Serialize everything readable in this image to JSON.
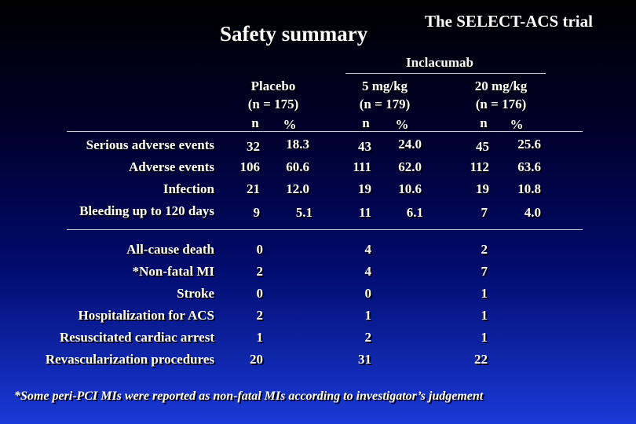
{
  "title": "Safety summary",
  "subtitle": "The SELECT-ACS trial",
  "group_header": "Inclacumab",
  "columns": [
    {
      "name": "Placebo",
      "n_total": "(n = 175)",
      "n_label": "n",
      "pct_label": "%"
    },
    {
      "name": "5 mg/kg",
      "n_total": "(n = 179)",
      "n_label": "n",
      "pct_label": "%"
    },
    {
      "name": "20 mg/kg",
      "n_total": "(n = 176)",
      "n_label": "n",
      "pct_label": "%"
    }
  ],
  "section1": [
    {
      "label": "Serious adverse events",
      "values": [
        [
          "32",
          "18.3"
        ],
        [
          "43",
          "24.0"
        ],
        [
          "45",
          "25.6"
        ]
      ]
    },
    {
      "label": "Adverse events",
      "values": [
        [
          "106",
          "60.6"
        ],
        [
          "111",
          "62.0"
        ],
        [
          "112",
          "63.6"
        ]
      ]
    },
    {
      "label": "Infection",
      "values": [
        [
          "21",
          "12.0"
        ],
        [
          "19",
          "10.6"
        ],
        [
          "19",
          "10.8"
        ]
      ]
    },
    {
      "label": "Bleeding up to 120 days",
      "values": [
        [
          "9",
          "5.1"
        ],
        [
          "11",
          "6.1"
        ],
        [
          "7",
          "4.0"
        ]
      ]
    }
  ],
  "section2": [
    {
      "label": "All-cause death",
      "values": [
        "0",
        "4",
        "2"
      ]
    },
    {
      "label": "*Non-fatal MI",
      "values": [
        "2",
        "4",
        "7"
      ]
    },
    {
      "label": "Stroke",
      "values": [
        "0",
        "0",
        "1"
      ]
    },
    {
      "label": "Hospitalization for ACS",
      "values": [
        "2",
        "1",
        "1"
      ]
    },
    {
      "label": "Resuscitated cardiac arrest",
      "values": [
        "1",
        "2",
        "1"
      ]
    },
    {
      "label": "Revascularization procedures",
      "values": [
        "20",
        "31",
        "22"
      ]
    }
  ],
  "footnote": "*Some peri-PCI MIs were reported as non-fatal MIs according to investigator’s judgement"
}
